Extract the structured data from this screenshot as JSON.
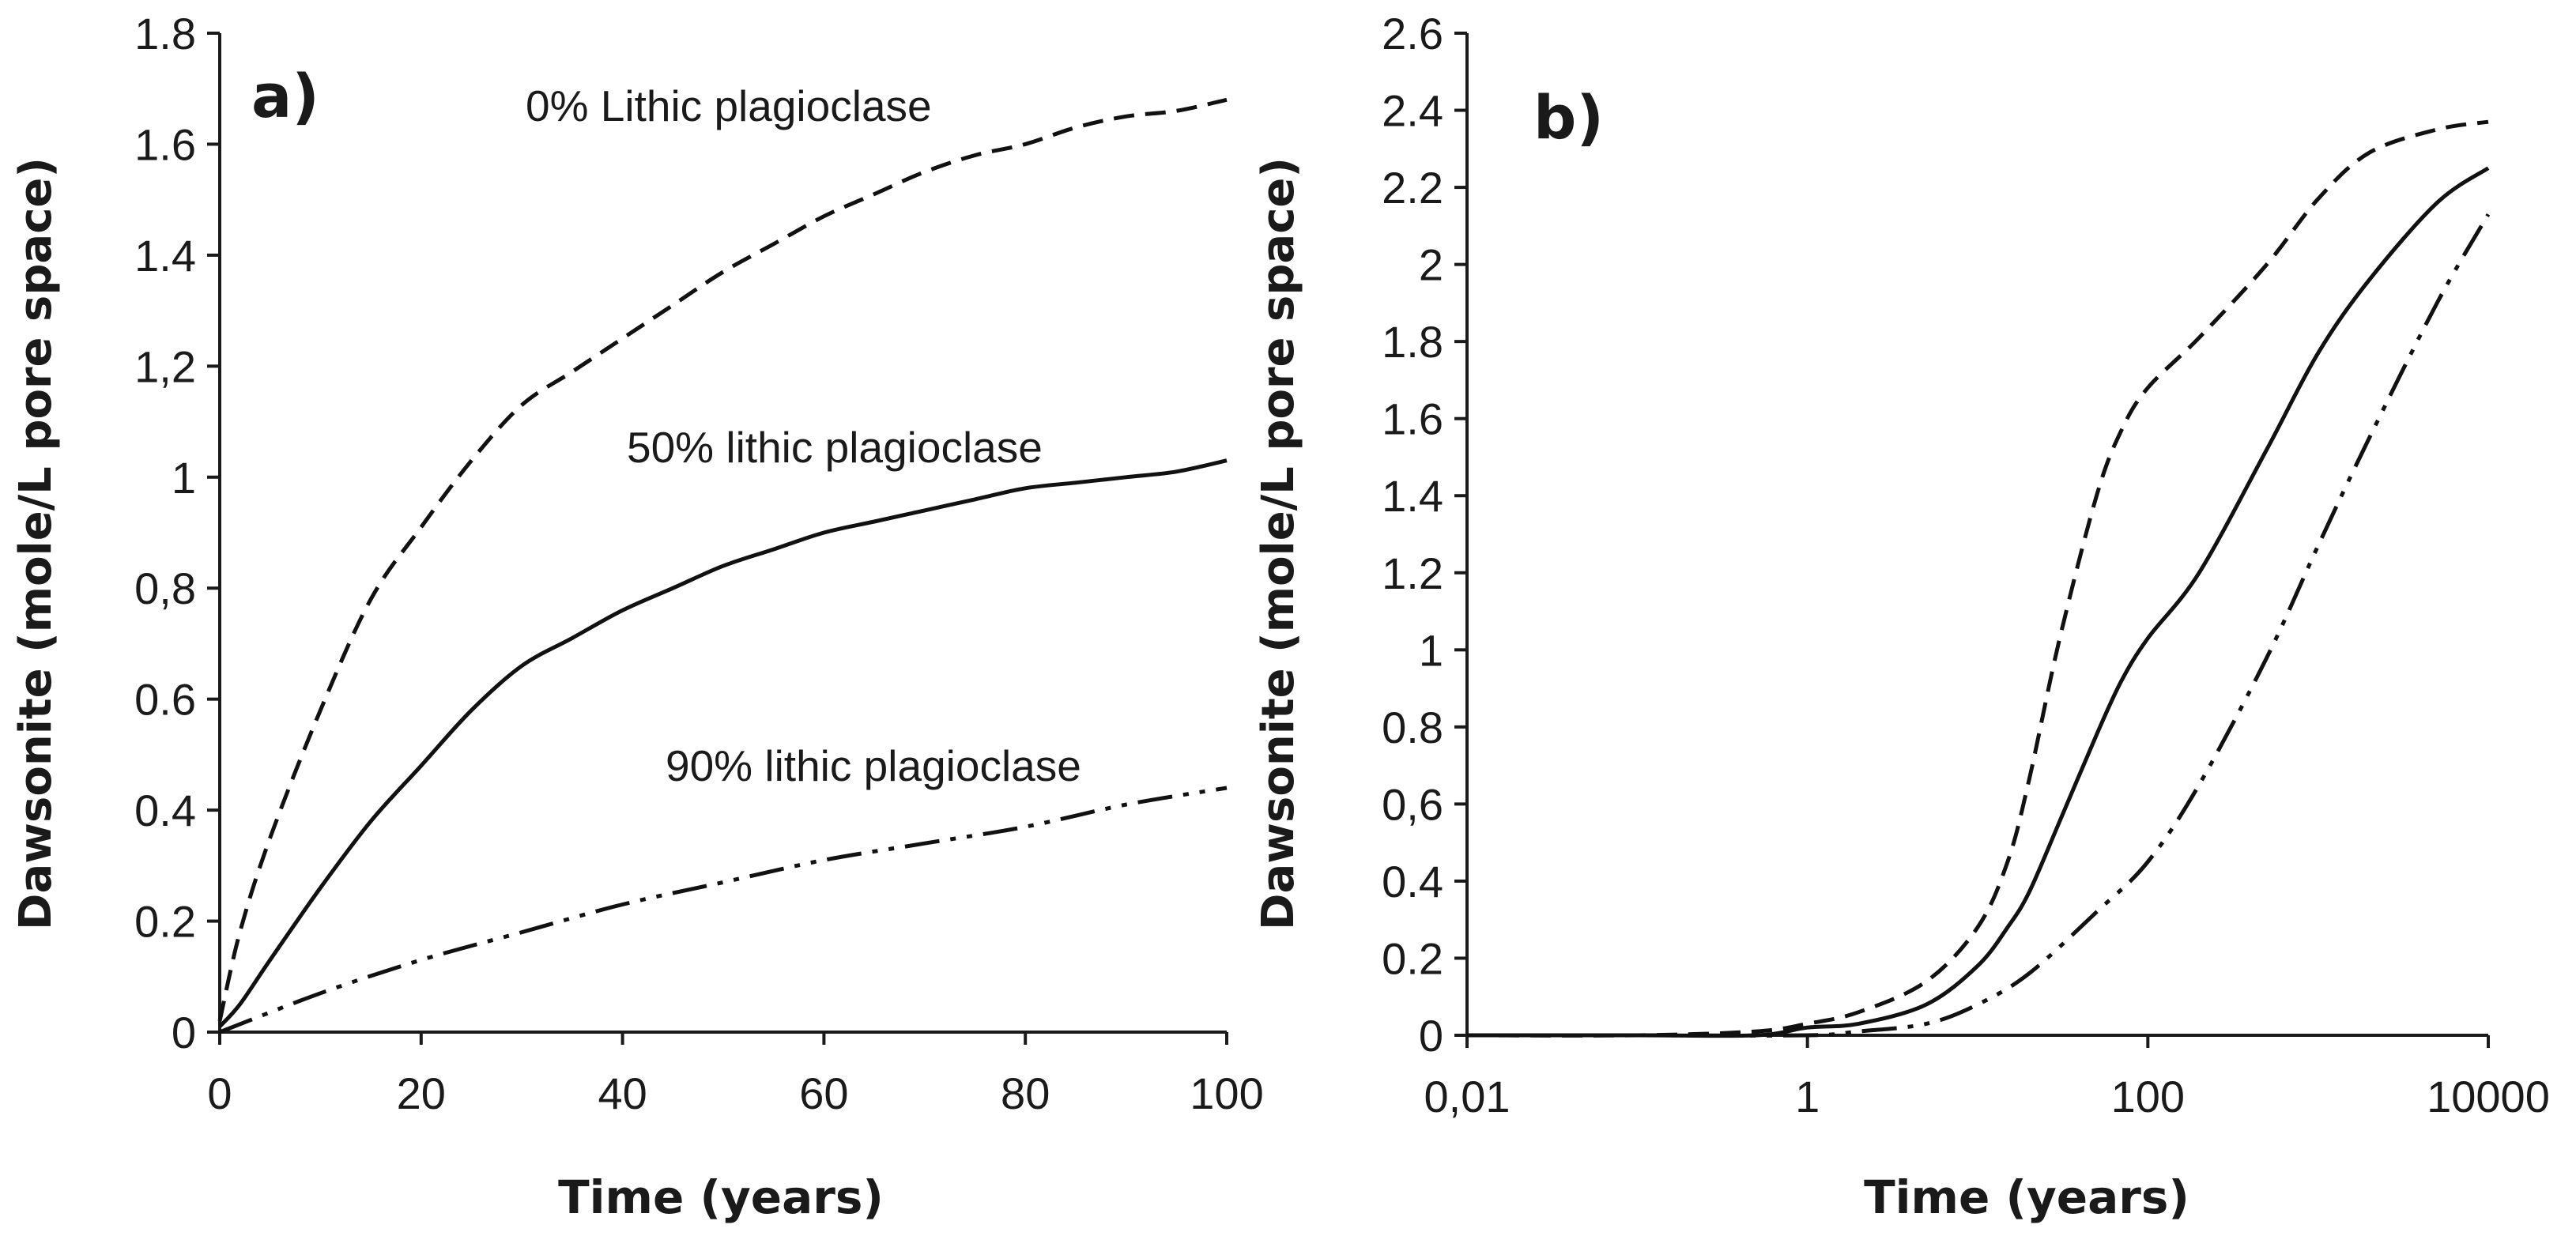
{
  "chart_data": [
    {
      "type": "line",
      "panel_label": "a)",
      "xlabel": "Time (years)",
      "ylabel": "Dawsonite (mole/L pore space)",
      "xscale": "linear",
      "xlim": [
        0,
        100
      ],
      "ylim": [
        0,
        1.8
      ],
      "xticks": [
        0,
        20,
        40,
        60,
        80,
        100
      ],
      "xtick_labels": [
        "0",
        "20",
        "40",
        "60",
        "80",
        "100"
      ],
      "yticks": [
        0,
        0.2,
        0.4,
        0.6,
        0.8,
        1,
        1.2,
        1.4,
        1.6,
        1.8
      ],
      "ytick_labels": [
        "0",
        "0.2",
        "0.4",
        "0.6",
        "0,8",
        "1",
        "1,2",
        "1.4",
        "1.6",
        "1.8"
      ],
      "grid": false,
      "legend": "none",
      "series": [
        {
          "name": "0% Lithic plagioclase",
          "style": "dashed",
          "x": [
            0,
            2,
            5,
            10,
            15,
            20,
            25,
            30,
            35,
            40,
            45,
            50,
            55,
            60,
            65,
            70,
            75,
            80,
            85,
            90,
            95,
            100
          ],
          "y": [
            0.02,
            0.18,
            0.35,
            0.58,
            0.78,
            0.91,
            1.03,
            1.13,
            1.19,
            1.25,
            1.31,
            1.37,
            1.42,
            1.47,
            1.51,
            1.55,
            1.58,
            1.6,
            1.63,
            1.65,
            1.66,
            1.68
          ]
        },
        {
          "name": "50% lithic plagioclase",
          "style": "solid",
          "x": [
            0,
            2,
            5,
            10,
            15,
            20,
            25,
            30,
            35,
            40,
            45,
            50,
            55,
            60,
            65,
            70,
            75,
            80,
            85,
            90,
            95,
            100
          ],
          "y": [
            0.01,
            0.05,
            0.13,
            0.26,
            0.38,
            0.48,
            0.58,
            0.66,
            0.71,
            0.76,
            0.8,
            0.84,
            0.87,
            0.9,
            0.92,
            0.94,
            0.96,
            0.98,
            0.99,
            1.0,
            1.01,
            1.03
          ]
        },
        {
          "name": "90% lithic plagioclase",
          "style": "dash-dot-dot",
          "x": [
            0,
            10,
            20,
            30,
            40,
            50,
            60,
            70,
            80,
            90,
            100
          ],
          "y": [
            0.0,
            0.07,
            0.13,
            0.18,
            0.23,
            0.27,
            0.31,
            0.34,
            0.37,
            0.41,
            0.44
          ]
        }
      ],
      "annotations": [
        "0% Lithic plagioclase",
        "50% lithic plagioclase",
        "90% lithic plagioclase"
      ]
    },
    {
      "type": "line",
      "panel_label": "b)",
      "xlabel": "Time (years)",
      "ylabel": "Dawsonite (mole/L pore space)",
      "xscale": "log",
      "xlim": [
        0.01,
        10000
      ],
      "ylim": [
        0,
        2.6
      ],
      "xticks": [
        0.01,
        1,
        100,
        10000
      ],
      "xtick_labels": [
        "0,01",
        "1",
        "100",
        "10000"
      ],
      "yticks": [
        0,
        0.2,
        0.4,
        0.6,
        0.8,
        1,
        1.2,
        1.4,
        1.6,
        1.8,
        2,
        2.2,
        2.4,
        2.6
      ],
      "ytick_labels": [
        "0",
        "0.2",
        "0.4",
        "0,6",
        "0.8",
        "1",
        "1.2",
        "1.4",
        "1.6",
        "1.8",
        "2",
        "2.2",
        "2.4",
        "2.6"
      ],
      "grid": false,
      "legend": "none",
      "series": [
        {
          "name": "0% Lithic plagioclase",
          "style": "dashed",
          "x": [
            0.01,
            0.1,
            0.5,
            1,
            2,
            5,
            10,
            15,
            20,
            30,
            50,
            70,
            100,
            200,
            500,
            1000,
            2000,
            5000,
            10000
          ],
          "y": [
            0.0,
            0.0,
            0.01,
            0.03,
            0.06,
            0.14,
            0.28,
            0.45,
            0.66,
            1.02,
            1.4,
            1.57,
            1.68,
            1.81,
            2.0,
            2.17,
            2.29,
            2.35,
            2.37
          ]
        },
        {
          "name": "50% lithic plagioclase",
          "style": "solid",
          "x": [
            0.01,
            0.1,
            0.5,
            1,
            2,
            5,
            10,
            15,
            20,
            30,
            50,
            70,
            100,
            200,
            500,
            1000,
            2000,
            5000,
            10000
          ],
          "y": [
            0.0,
            0.0,
            0.0,
            0.02,
            0.03,
            0.08,
            0.18,
            0.28,
            0.37,
            0.55,
            0.78,
            0.92,
            1.03,
            1.2,
            1.52,
            1.77,
            1.96,
            2.16,
            2.25
          ]
        },
        {
          "name": "90% lithic plagioclase",
          "style": "dash-dot-dot",
          "x": [
            0.01,
            0.1,
            1,
            2,
            5,
            10,
            20,
            50,
            100,
            200,
            500,
            1000,
            2000,
            5000,
            10000
          ],
          "y": [
            0.0,
            0.0,
            0.0,
            0.01,
            0.03,
            0.08,
            0.16,
            0.32,
            0.45,
            0.65,
            0.98,
            1.27,
            1.55,
            1.9,
            2.13
          ]
        }
      ],
      "annotations": []
    }
  ]
}
